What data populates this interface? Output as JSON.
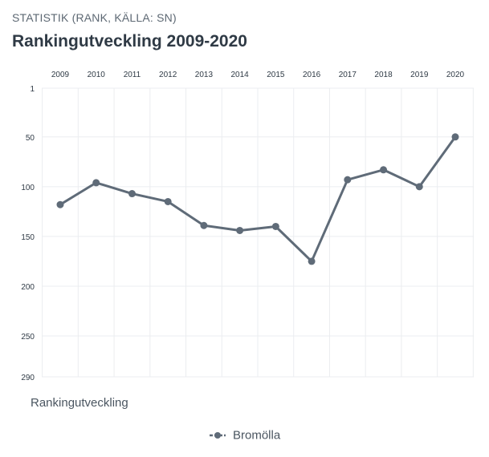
{
  "header": {
    "kicker": "STATISTIK (RANK, KÄLLA: SN)",
    "title": "Rankingutveckling 2009-2020"
  },
  "colors": {
    "series": "#5f6b78",
    "grid": "#ebedf0",
    "text": "#2f3a45"
  },
  "chart_data": {
    "type": "line",
    "title": "Rankingutveckling 2009-2020",
    "x": [
      "2009",
      "2010",
      "2011",
      "2012",
      "2013",
      "2014",
      "2015",
      "2016",
      "2017",
      "2018",
      "2019",
      "2020"
    ],
    "series": [
      {
        "name": "Bromölla",
        "values": [
          118,
          96,
          107,
          115,
          139,
          144,
          140,
          175,
          93,
          83,
          100,
          50
        ]
      }
    ],
    "ylabel": "Rankingutveckling",
    "ylim": [
      1,
      290
    ],
    "yticks": [
      1,
      50,
      100,
      150,
      200,
      250,
      290
    ],
    "y_inverted": true,
    "x_axis_position": "top",
    "grid": true,
    "legend": "bottom-center"
  }
}
